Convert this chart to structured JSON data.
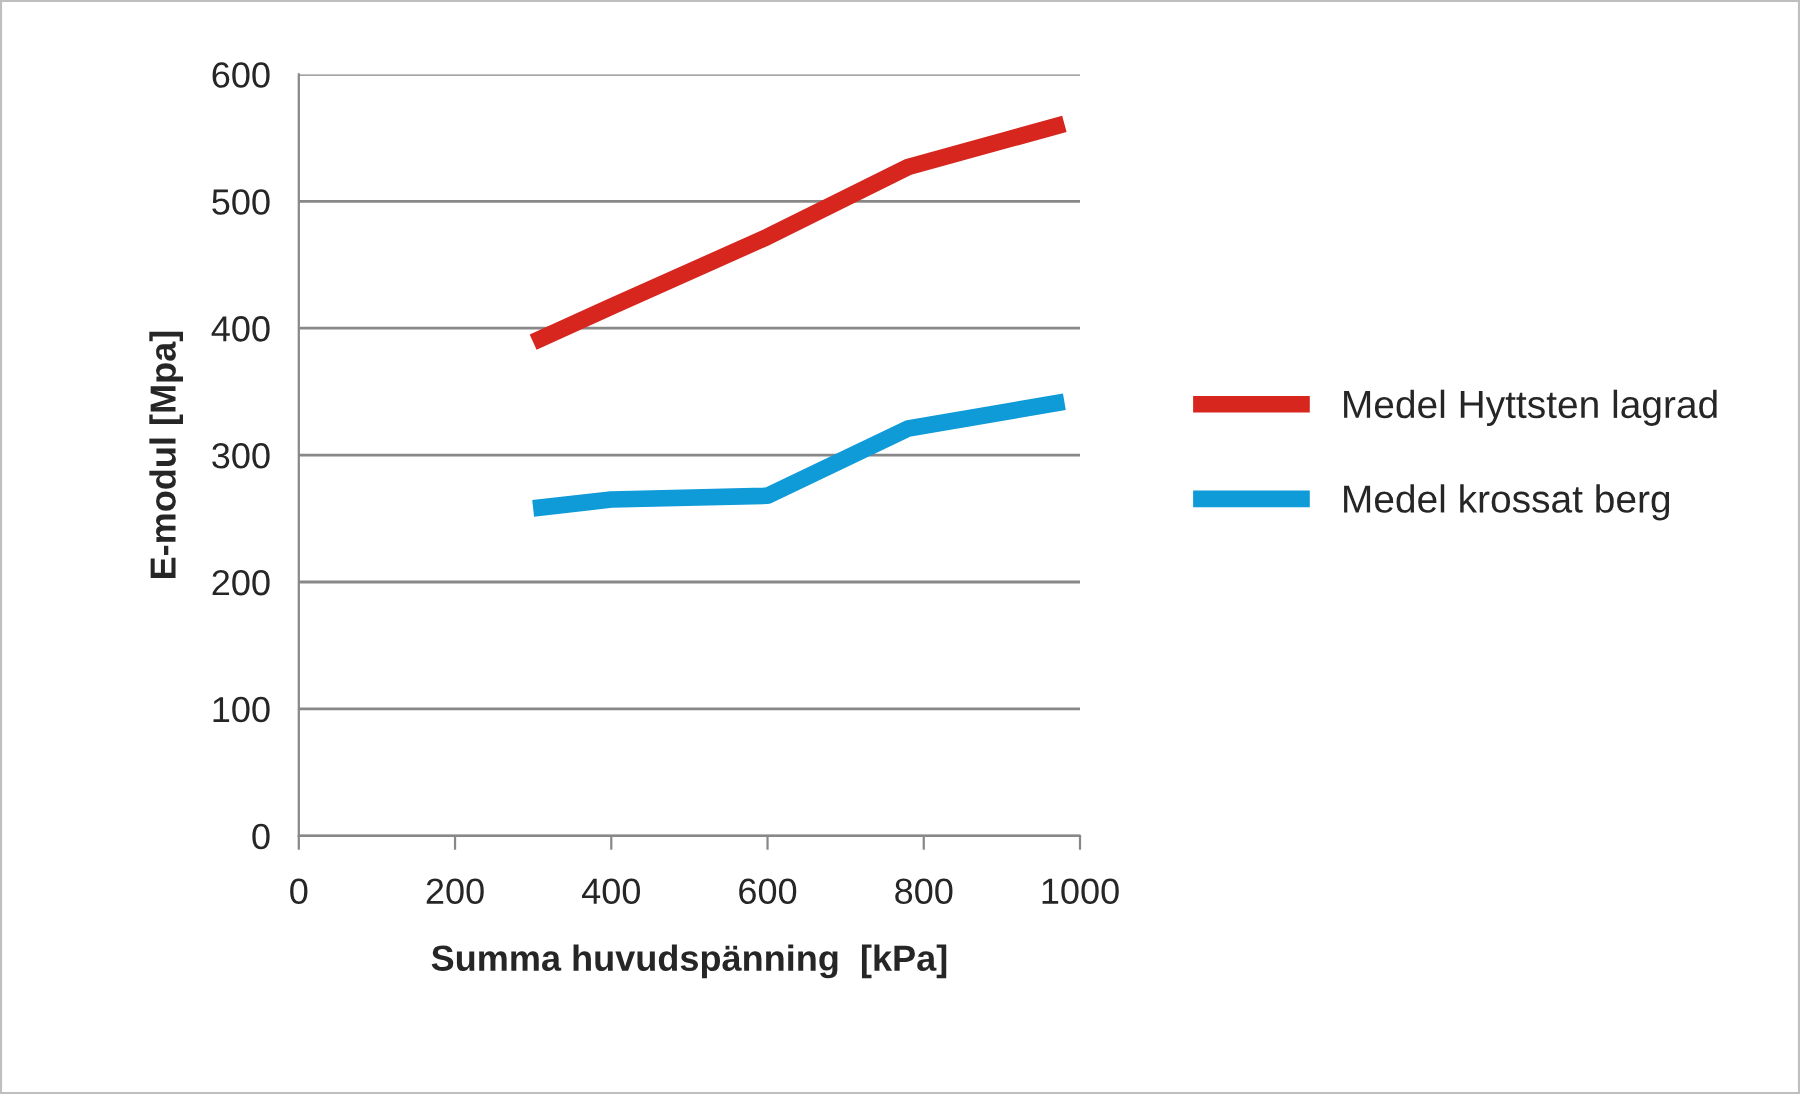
{
  "chart_data": {
    "type": "line",
    "xlabel": "Summa huvudspänning  [kPa]",
    "ylabel": "E-modul [Mpa]",
    "x": [
      300,
      400,
      600,
      780,
      980
    ],
    "series": [
      {
        "name": "Medel Hyttsten lagrad",
        "color": "#d7261e",
        "values": [
          389,
          417,
          472,
          527,
          561
        ]
      },
      {
        "name": "Medel krossat berg",
        "color": "#0f9ad8",
        "values": [
          258,
          265,
          268,
          321,
          342
        ]
      }
    ],
    "xlim": [
      0,
      1000
    ],
    "xticks": [
      0,
      200,
      400,
      600,
      800,
      1000
    ],
    "ylim": [
      0,
      600
    ],
    "yticks": [
      0,
      100,
      200,
      300,
      400,
      500,
      600
    ],
    "grid": "y",
    "legend": "right",
    "line_style": "solid",
    "marker": "none"
  }
}
